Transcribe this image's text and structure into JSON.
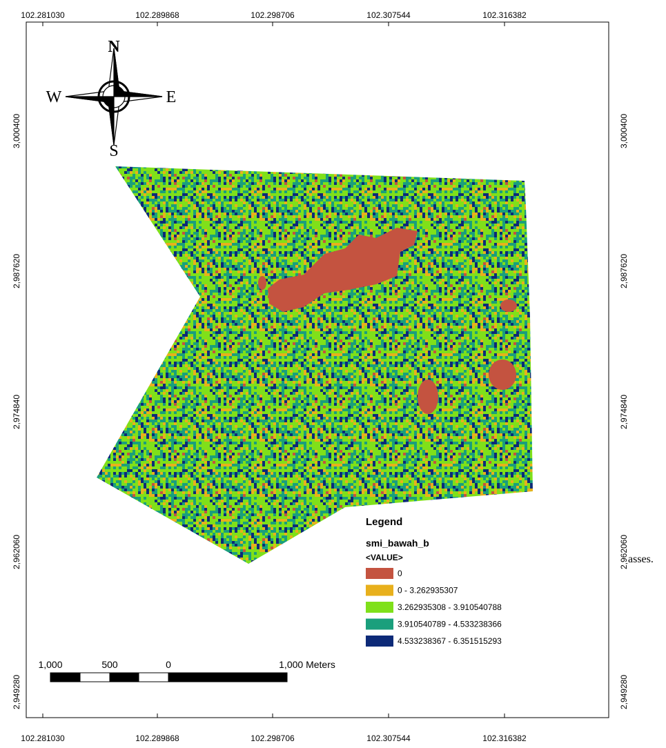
{
  "map": {
    "x_ticks": [
      "102.281030",
      "102.289868",
      "102.298706",
      "102.307544",
      "102.316382"
    ],
    "y_ticks": [
      "3,000400",
      "2,987620",
      "2,974840",
      "2,962060",
      "2,949280"
    ]
  },
  "compass": {
    "north": "N",
    "south": "S",
    "east": "E",
    "west": "W"
  },
  "legend": {
    "title": "Legend",
    "layer": "smi_bawah_b",
    "field": "<VALUE>",
    "items": [
      {
        "label": "0",
        "color": "#c45340"
      },
      {
        "label": "0 - 3.262935307",
        "color": "#e8b01c"
      },
      {
        "label": "3.262935308 - 3.910540788",
        "color": "#7fe01a"
      },
      {
        "label": "3.910540789 - 4.533238366",
        "color": "#1a9f7c"
      },
      {
        "label": "4.533238367 - 6.351515293",
        "color": "#0d2a78"
      }
    ]
  },
  "scale_bar": {
    "labels": [
      "1,000",
      "500",
      "0",
      "1,000 Meters"
    ]
  },
  "caption_fragment": "asses."
}
